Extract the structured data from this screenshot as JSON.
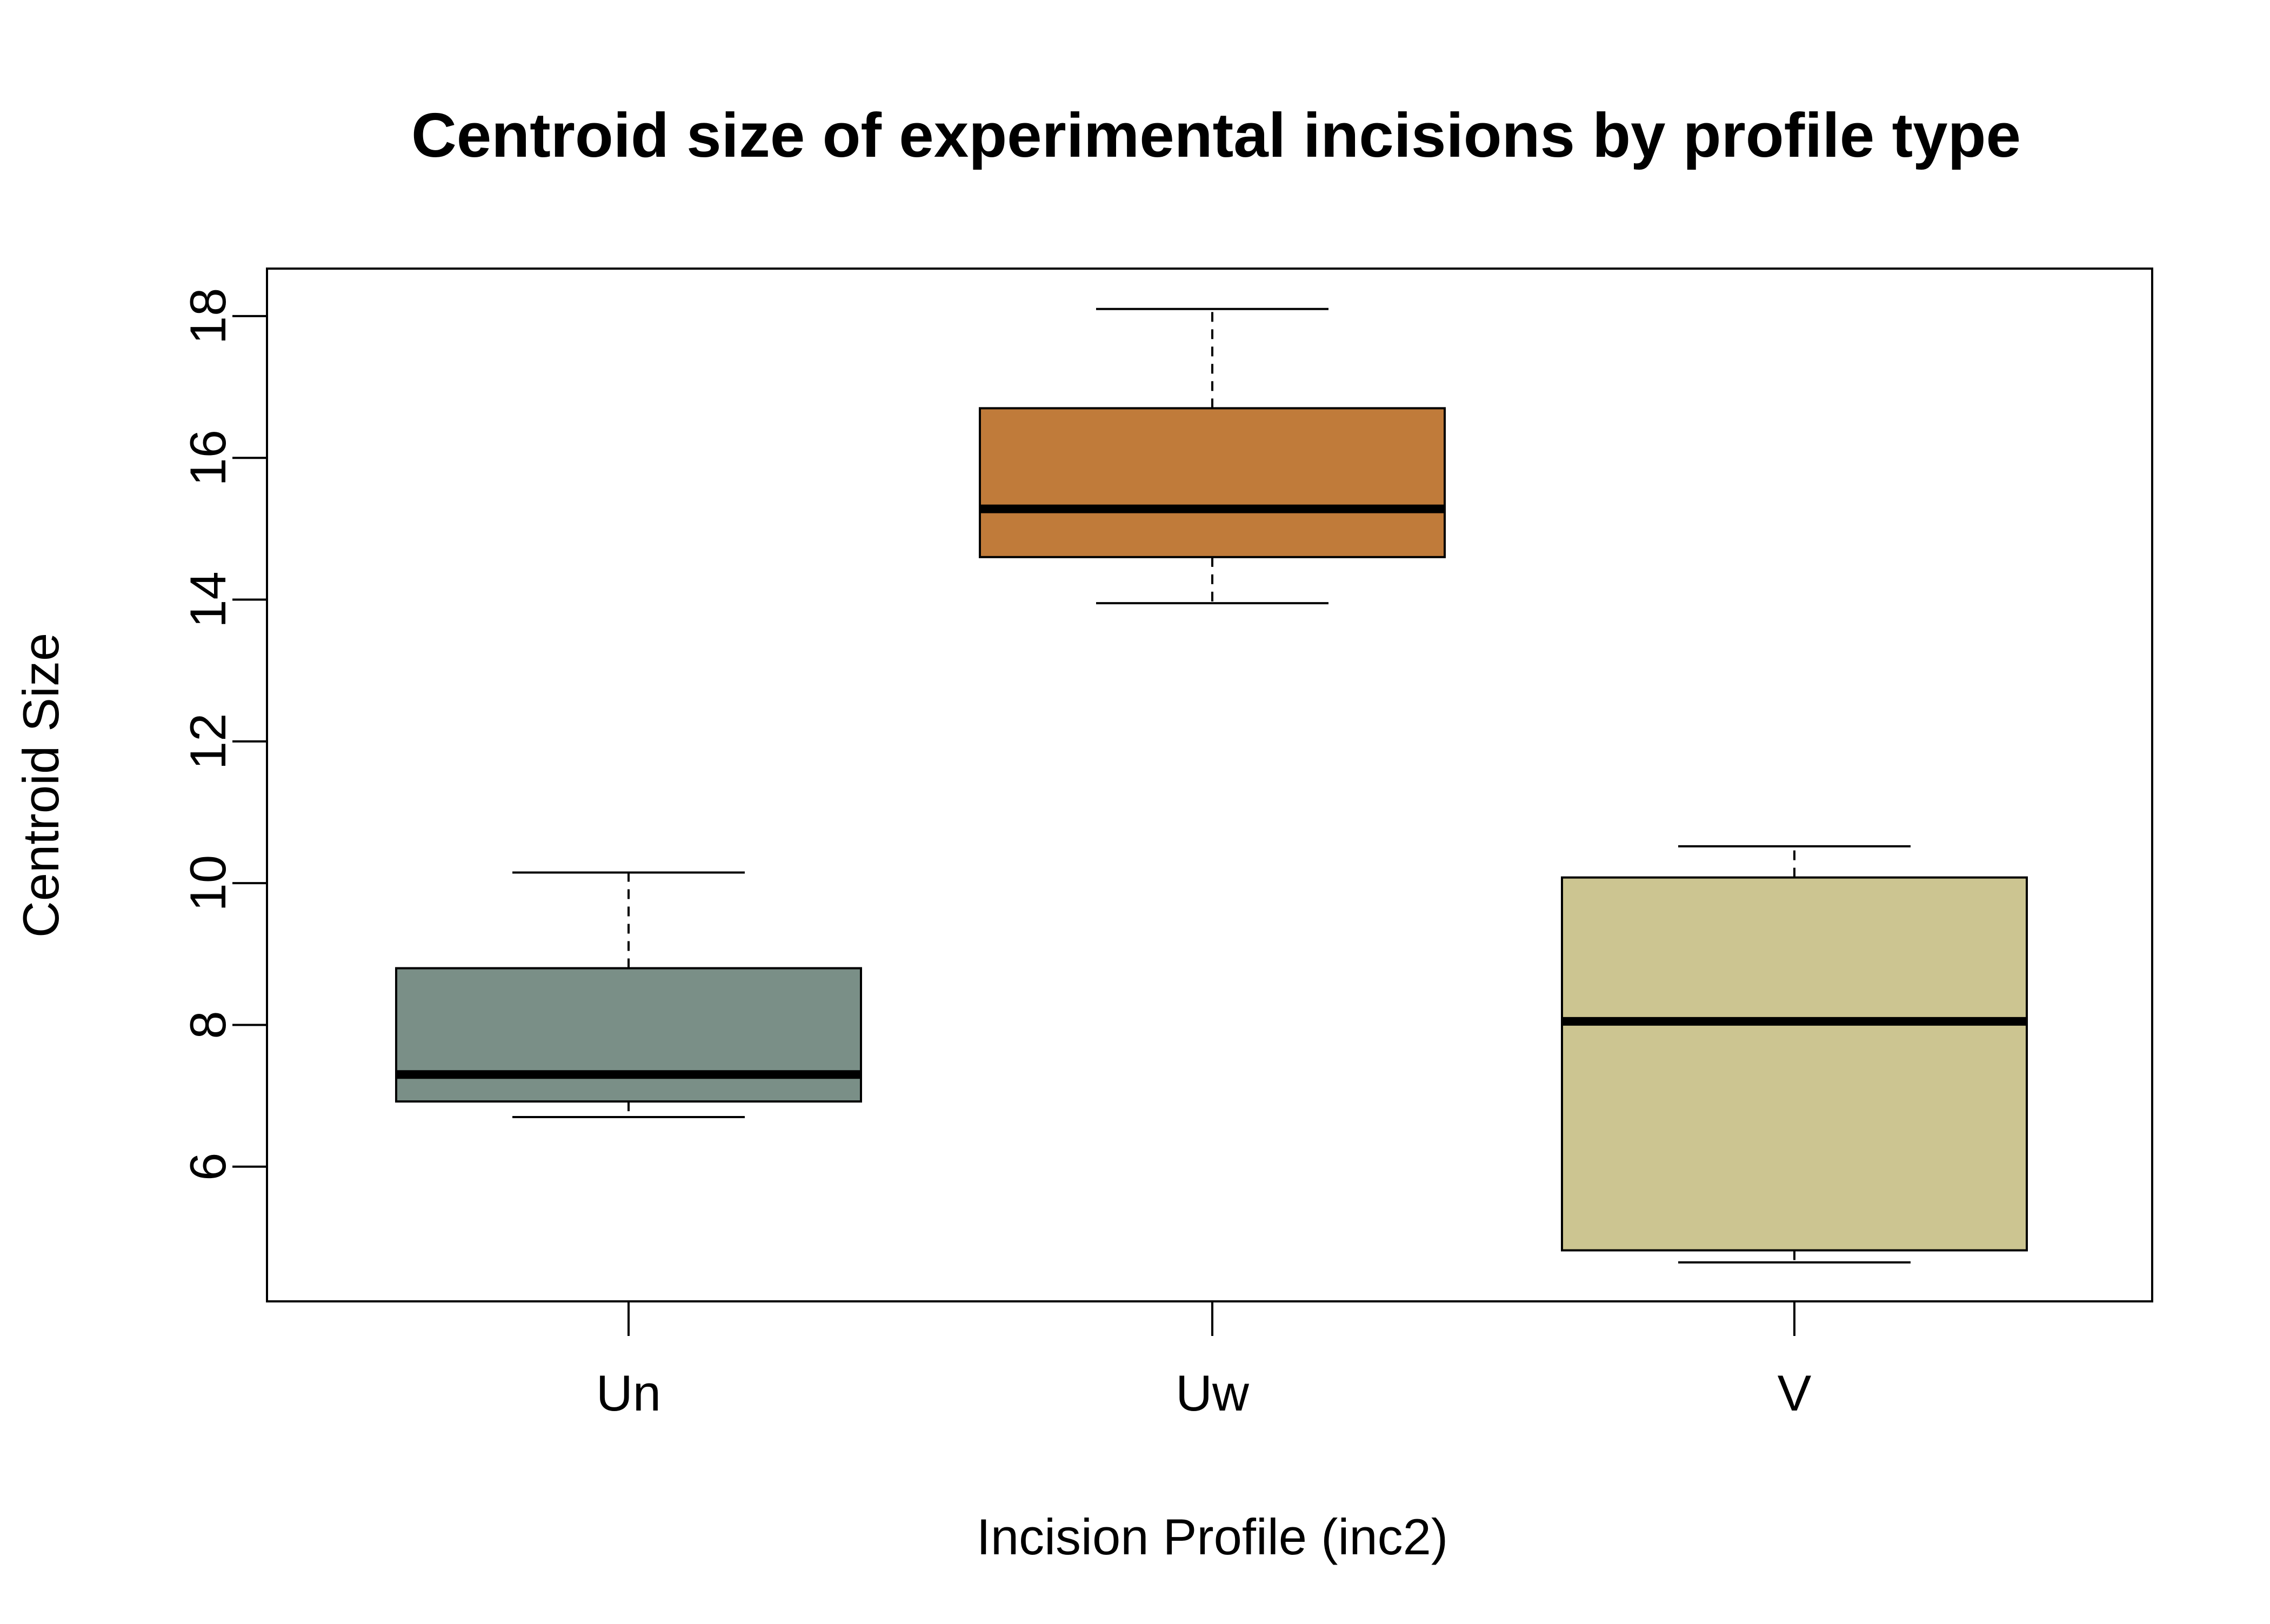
{
  "chart_data": {
    "type": "boxplot",
    "title": "Centroid size of experimental incisions by profile type",
    "xlabel": "Incision Profile (inc2)",
    "ylabel": "Centroid Size",
    "categories": [
      "Un",
      "Uw",
      "V"
    ],
    "ylim": [
      4.1,
      18.67
    ],
    "yticks": [
      6,
      8,
      10,
      12,
      14,
      16,
      18
    ],
    "grid": false,
    "legend": "none",
    "boxes": [
      {
        "category": "Un",
        "min": 6.7,
        "q1": 6.92,
        "median": 7.3,
        "q3": 8.8,
        "max": 10.15,
        "color": "#7A8F87"
      },
      {
        "category": "Uw",
        "min": 13.95,
        "q1": 14.6,
        "median": 15.28,
        "q3": 16.7,
        "max": 18.1,
        "color": "#C07B3A"
      },
      {
        "category": "V",
        "min": 4.65,
        "q1": 4.82,
        "median": 8.05,
        "q3": 10.08,
        "max": 10.52,
        "color": "#CCC591"
      }
    ]
  }
}
